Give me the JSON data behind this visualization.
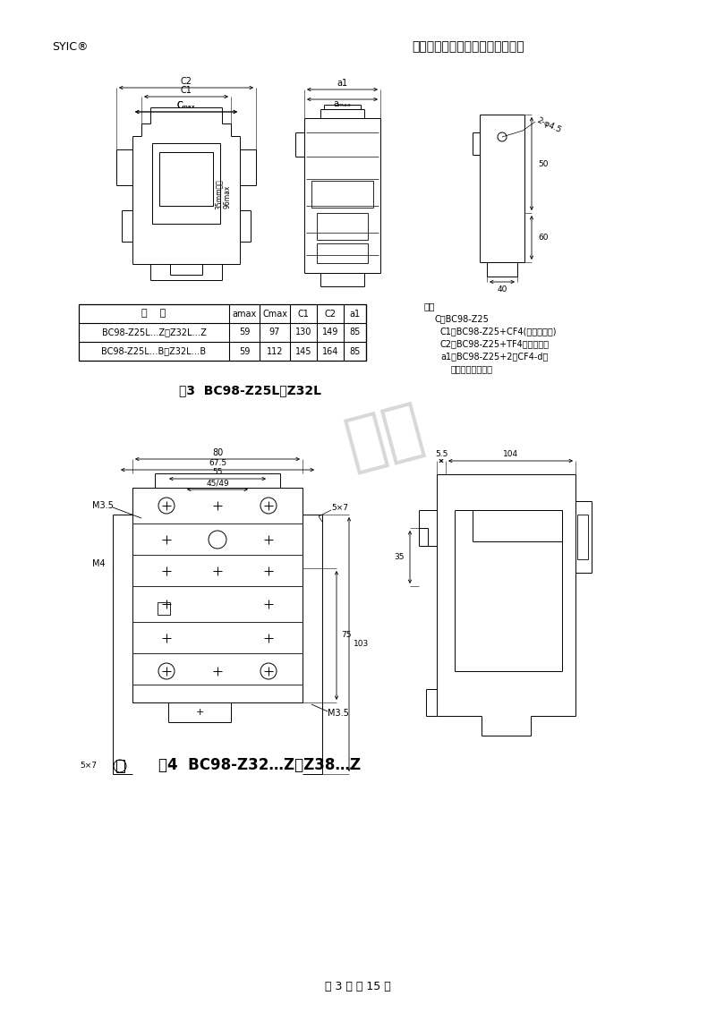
{
  "header_left": "SYIC®",
  "header_right": "沈阳二一三控制电器制造有限公司",
  "fig3_caption": "图3  BC98-Z25L、Z32L",
  "fig4_caption": "图4  BC98-Z32…Z、Z38…Z",
  "footer": "第 3 页 共 15 页",
  "table_headers": [
    "型    号",
    "amax",
    "Cmax",
    "C1",
    "C2",
    "a1"
  ],
  "table_row1": [
    "BC98-Z25L…Z、Z32L…Z",
    "59",
    "97",
    "130",
    "149",
    "85"
  ],
  "table_row2": [
    "BC98-Z25L…B、Z32L…B",
    "59",
    "112",
    "145",
    "164",
    "85"
  ],
  "notes_title": "注：",
  "notes": [
    "C： BC98-Z25",
    "C1： BC98-Z25+CF4(辅助触头组)",
    "C2： BC98-Z25+TF4（延时头）",
    "a1： BC98-Z25+2（CF4-d）",
    "（侧挂辅助触头）"
  ],
  "watermark": "欲价",
  "bg_color": "#ffffff",
  "line_color": "#000000"
}
